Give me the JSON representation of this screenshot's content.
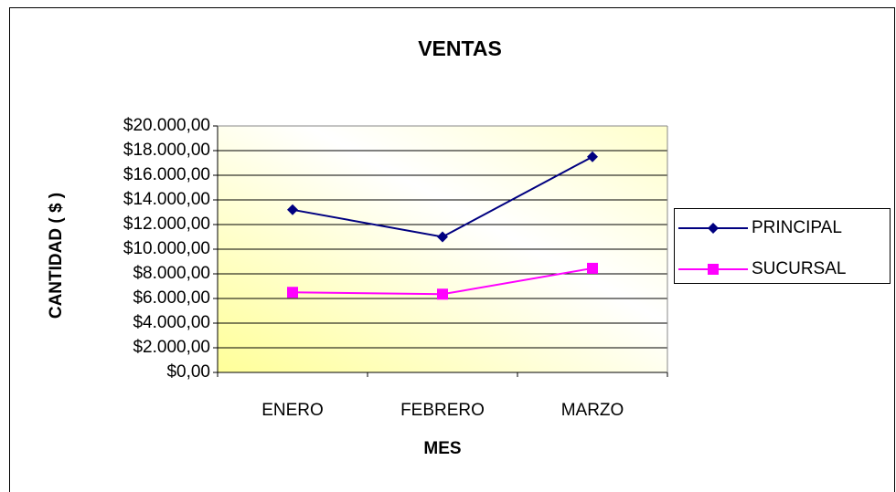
{
  "chart_data": {
    "type": "line",
    "title": "VENTAS",
    "x_label": "MES",
    "y_label": "CANTIDAD ( $ )",
    "categories": [
      "ENERO",
      "FEBRERO",
      "MARZO"
    ],
    "series": [
      {
        "name": "PRINCIPAL",
        "color": "#000080",
        "marker": "diamond",
        "values": [
          13200,
          11000,
          17500
        ]
      },
      {
        "name": "SUCURSAL",
        "color": "#ff00ff",
        "marker": "square",
        "values": [
          6500,
          6350,
          8450
        ]
      }
    ],
    "ylim": [
      0,
      20000
    ],
    "yticks": [
      {
        "value": 0,
        "label": "$0,00"
      },
      {
        "value": 2000,
        "label": "$2.000,00"
      },
      {
        "value": 4000,
        "label": "$4.000,00"
      },
      {
        "value": 6000,
        "label": "$6.000,00"
      },
      {
        "value": 8000,
        "label": "$8.000,00"
      },
      {
        "value": 10000,
        "label": "$10.000,00"
      },
      {
        "value": 12000,
        "label": "$12.000,00"
      },
      {
        "value": 14000,
        "label": "$14.000,00"
      },
      {
        "value": 16000,
        "label": "$16.000,00"
      },
      {
        "value": 18000,
        "label": "$18.000,00"
      },
      {
        "value": 20000,
        "label": "$20.000,00"
      }
    ],
    "grid": true,
    "legend": "right"
  }
}
